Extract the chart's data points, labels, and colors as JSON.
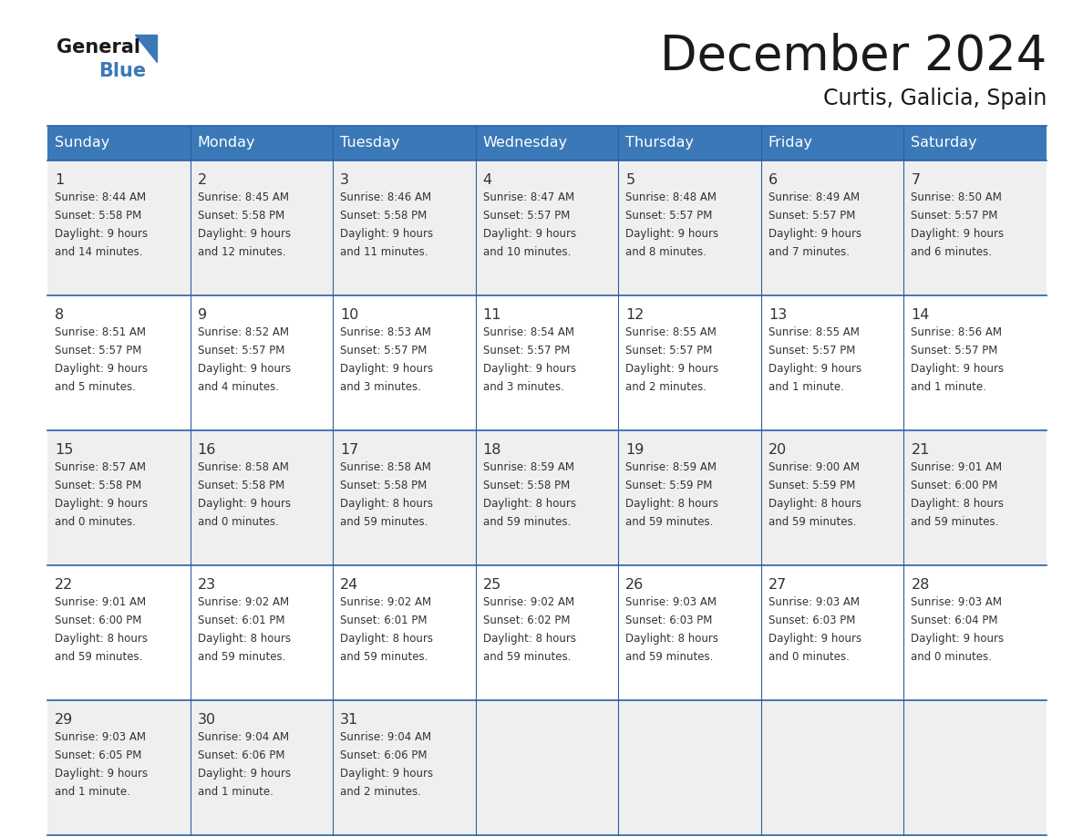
{
  "title": "December 2024",
  "subtitle": "Curtis, Galicia, Spain",
  "header_color": "#3b78b8",
  "header_text_color": "#ffffff",
  "cell_bg_even": "#efefef",
  "cell_bg_odd": "#ffffff",
  "border_color": "#2a5fa8",
  "text_color": "#333333",
  "days_of_week": [
    "Sunday",
    "Monday",
    "Tuesday",
    "Wednesday",
    "Thursday",
    "Friday",
    "Saturday"
  ],
  "weeks": [
    [
      {
        "day": "1",
        "sunrise": "8:44 AM",
        "sunset": "5:58 PM",
        "daylight_line1": "Daylight: 9 hours",
        "daylight_line2": "and 14 minutes."
      },
      {
        "day": "2",
        "sunrise": "8:45 AM",
        "sunset": "5:58 PM",
        "daylight_line1": "Daylight: 9 hours",
        "daylight_line2": "and 12 minutes."
      },
      {
        "day": "3",
        "sunrise": "8:46 AM",
        "sunset": "5:58 PM",
        "daylight_line1": "Daylight: 9 hours",
        "daylight_line2": "and 11 minutes."
      },
      {
        "day": "4",
        "sunrise": "8:47 AM",
        "sunset": "5:57 PM",
        "daylight_line1": "Daylight: 9 hours",
        "daylight_line2": "and 10 minutes."
      },
      {
        "day": "5",
        "sunrise": "8:48 AM",
        "sunset": "5:57 PM",
        "daylight_line1": "Daylight: 9 hours",
        "daylight_line2": "and 8 minutes."
      },
      {
        "day": "6",
        "sunrise": "8:49 AM",
        "sunset": "5:57 PM",
        "daylight_line1": "Daylight: 9 hours",
        "daylight_line2": "and 7 minutes."
      },
      {
        "day": "7",
        "sunrise": "8:50 AM",
        "sunset": "5:57 PM",
        "daylight_line1": "Daylight: 9 hours",
        "daylight_line2": "and 6 minutes."
      }
    ],
    [
      {
        "day": "8",
        "sunrise": "8:51 AM",
        "sunset": "5:57 PM",
        "daylight_line1": "Daylight: 9 hours",
        "daylight_line2": "and 5 minutes."
      },
      {
        "day": "9",
        "sunrise": "8:52 AM",
        "sunset": "5:57 PM",
        "daylight_line1": "Daylight: 9 hours",
        "daylight_line2": "and 4 minutes."
      },
      {
        "day": "10",
        "sunrise": "8:53 AM",
        "sunset": "5:57 PM",
        "daylight_line1": "Daylight: 9 hours",
        "daylight_line2": "and 3 minutes."
      },
      {
        "day": "11",
        "sunrise": "8:54 AM",
        "sunset": "5:57 PM",
        "daylight_line1": "Daylight: 9 hours",
        "daylight_line2": "and 3 minutes."
      },
      {
        "day": "12",
        "sunrise": "8:55 AM",
        "sunset": "5:57 PM",
        "daylight_line1": "Daylight: 9 hours",
        "daylight_line2": "and 2 minutes."
      },
      {
        "day": "13",
        "sunrise": "8:55 AM",
        "sunset": "5:57 PM",
        "daylight_line1": "Daylight: 9 hours",
        "daylight_line2": "and 1 minute."
      },
      {
        "day": "14",
        "sunrise": "8:56 AM",
        "sunset": "5:57 PM",
        "daylight_line1": "Daylight: 9 hours",
        "daylight_line2": "and 1 minute."
      }
    ],
    [
      {
        "day": "15",
        "sunrise": "8:57 AM",
        "sunset": "5:58 PM",
        "daylight_line1": "Daylight: 9 hours",
        "daylight_line2": "and 0 minutes."
      },
      {
        "day": "16",
        "sunrise": "8:58 AM",
        "sunset": "5:58 PM",
        "daylight_line1": "Daylight: 9 hours",
        "daylight_line2": "and 0 minutes."
      },
      {
        "day": "17",
        "sunrise": "8:58 AM",
        "sunset": "5:58 PM",
        "daylight_line1": "Daylight: 8 hours",
        "daylight_line2": "and 59 minutes."
      },
      {
        "day": "18",
        "sunrise": "8:59 AM",
        "sunset": "5:58 PM",
        "daylight_line1": "Daylight: 8 hours",
        "daylight_line2": "and 59 minutes."
      },
      {
        "day": "19",
        "sunrise": "8:59 AM",
        "sunset": "5:59 PM",
        "daylight_line1": "Daylight: 8 hours",
        "daylight_line2": "and 59 minutes."
      },
      {
        "day": "20",
        "sunrise": "9:00 AM",
        "sunset": "5:59 PM",
        "daylight_line1": "Daylight: 8 hours",
        "daylight_line2": "and 59 minutes."
      },
      {
        "day": "21",
        "sunrise": "9:01 AM",
        "sunset": "6:00 PM",
        "daylight_line1": "Daylight: 8 hours",
        "daylight_line2": "and 59 minutes."
      }
    ],
    [
      {
        "day": "22",
        "sunrise": "9:01 AM",
        "sunset": "6:00 PM",
        "daylight_line1": "Daylight: 8 hours",
        "daylight_line2": "and 59 minutes."
      },
      {
        "day": "23",
        "sunrise": "9:02 AM",
        "sunset": "6:01 PM",
        "daylight_line1": "Daylight: 8 hours",
        "daylight_line2": "and 59 minutes."
      },
      {
        "day": "24",
        "sunrise": "9:02 AM",
        "sunset": "6:01 PM",
        "daylight_line1": "Daylight: 8 hours",
        "daylight_line2": "and 59 minutes."
      },
      {
        "day": "25",
        "sunrise": "9:02 AM",
        "sunset": "6:02 PM",
        "daylight_line1": "Daylight: 8 hours",
        "daylight_line2": "and 59 minutes."
      },
      {
        "day": "26",
        "sunrise": "9:03 AM",
        "sunset": "6:03 PM",
        "daylight_line1": "Daylight: 8 hours",
        "daylight_line2": "and 59 minutes."
      },
      {
        "day": "27",
        "sunrise": "9:03 AM",
        "sunset": "6:03 PM",
        "daylight_line1": "Daylight: 9 hours",
        "daylight_line2": "and 0 minutes."
      },
      {
        "day": "28",
        "sunrise": "9:03 AM",
        "sunset": "6:04 PM",
        "daylight_line1": "Daylight: 9 hours",
        "daylight_line2": "and 0 minutes."
      }
    ],
    [
      {
        "day": "29",
        "sunrise": "9:03 AM",
        "sunset": "6:05 PM",
        "daylight_line1": "Daylight: 9 hours",
        "daylight_line2": "and 1 minute."
      },
      {
        "day": "30",
        "sunrise": "9:04 AM",
        "sunset": "6:06 PM",
        "daylight_line1": "Daylight: 9 hours",
        "daylight_line2": "and 1 minute."
      },
      {
        "day": "31",
        "sunrise": "9:04 AM",
        "sunset": "6:06 PM",
        "daylight_line1": "Daylight: 9 hours",
        "daylight_line2": "and 2 minutes."
      },
      null,
      null,
      null,
      null
    ]
  ]
}
